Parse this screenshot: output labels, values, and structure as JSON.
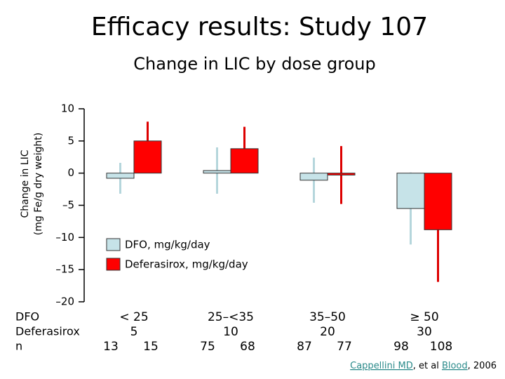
{
  "chart_data": {
    "type": "bar",
    "title": "Efficacy results: Study 107",
    "subtitle": "Change in LIC by dose group",
    "y_label": [
      "Change in LIC",
      "(mg Fe/g dry weight)"
    ],
    "ylim": [
      -20,
      10
    ],
    "yticks": [
      {
        "value": -20,
        "label": "–20"
      },
      {
        "value": -15,
        "label": "–15"
      },
      {
        "value": -10,
        "label": "–10"
      },
      {
        "value": -5,
        "label": "–5"
      },
      0,
      5,
      10
    ],
    "row_labels": [
      "DFO",
      "Deferasirox",
      "n"
    ],
    "series": [
      {
        "name": "DFO, mg/kg/day",
        "color": "#c6e3e8",
        "error_color": "#b5d6dc",
        "doses": [
          "< 25",
          "25–<35",
          "35–50",
          "≥ 50"
        ],
        "values": [
          -0.8,
          0.4,
          -1.1,
          -5.5
        ],
        "errors": [
          2.4,
          3.6,
          3.5,
          5.6
        ],
        "n": [
          13,
          75,
          87,
          98
        ]
      },
      {
        "name": "Deferasirox, mg/kg/day",
        "color": "#ff0000",
        "error_color": "#dd0000",
        "doses": [
          5,
          10,
          20,
          30
        ],
        "values": [
          5.0,
          3.8,
          -0.3,
          -8.8
        ],
        "errors": [
          3.0,
          3.4,
          4.5,
          8.1
        ],
        "n": [
          15,
          68,
          77,
          108
        ]
      }
    ],
    "source": [
      "Cappellini MD",
      ", et al ",
      "Blood",
      ", 2006"
    ]
  }
}
